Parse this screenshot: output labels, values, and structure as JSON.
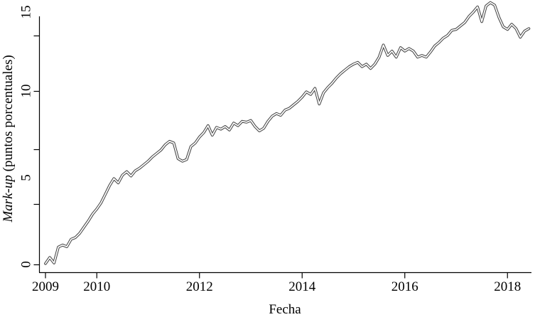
{
  "figure": {
    "background": "#ffffff",
    "axis_color": "#000000",
    "text_color": "#000000"
  },
  "chart_data": {
    "type": "line",
    "title": "",
    "xlabel": "Fecha",
    "ylabel": {
      "italic": "Mark-up",
      "rest": " (puntos porcentuales)"
    },
    "x_tick_labels": [
      "2009",
      "2010",
      "2012",
      "2014",
      "2016",
      "2018"
    ],
    "x_tick_years": [
      2009,
      2010,
      2012,
      2014,
      2016,
      2018
    ],
    "y_tick_labels": [
      "0",
      "5",
      "10",
      "15"
    ],
    "y_tick_values": [
      0,
      5,
      10,
      15
    ],
    "xlim": [
      2008.88,
      2018.47
    ],
    "ylim": [
      0,
      15.4
    ],
    "grid": false,
    "legend": false,
    "line_style": {
      "outline_color": "#474747",
      "core_color": "#ffffff"
    },
    "series": [
      {
        "name": "mark-up",
        "points": [
          [
            2009.0,
            0.05
          ],
          [
            2009.083,
            0.4
          ],
          [
            2009.167,
            0.08
          ],
          [
            2009.25,
            1.0
          ],
          [
            2009.333,
            1.12
          ],
          [
            2009.417,
            1.02
          ],
          [
            2009.5,
            1.45
          ],
          [
            2009.583,
            1.55
          ],
          [
            2009.667,
            1.8
          ],
          [
            2009.75,
            2.15
          ],
          [
            2009.833,
            2.5
          ],
          [
            2009.917,
            2.9
          ],
          [
            2010.0,
            3.2
          ],
          [
            2010.083,
            3.55
          ],
          [
            2010.167,
            4.05
          ],
          [
            2010.25,
            4.55
          ],
          [
            2010.333,
            4.95
          ],
          [
            2010.417,
            4.7
          ],
          [
            2010.5,
            5.15
          ],
          [
            2010.583,
            5.35
          ],
          [
            2010.667,
            5.1
          ],
          [
            2010.75,
            5.4
          ],
          [
            2010.833,
            5.55
          ],
          [
            2010.917,
            5.75
          ],
          [
            2011.0,
            5.95
          ],
          [
            2011.083,
            6.2
          ],
          [
            2011.167,
            6.4
          ],
          [
            2011.25,
            6.6
          ],
          [
            2011.333,
            6.9
          ],
          [
            2011.417,
            7.1
          ],
          [
            2011.5,
            7.0
          ],
          [
            2011.583,
            6.1
          ],
          [
            2011.667,
            5.95
          ],
          [
            2011.75,
            6.05
          ],
          [
            2011.833,
            6.8
          ],
          [
            2011.917,
            7.0
          ],
          [
            2012.0,
            7.35
          ],
          [
            2012.083,
            7.6
          ],
          [
            2012.167,
            8.0
          ],
          [
            2012.25,
            7.45
          ],
          [
            2012.333,
            7.9
          ],
          [
            2012.417,
            7.8
          ],
          [
            2012.5,
            7.95
          ],
          [
            2012.583,
            7.75
          ],
          [
            2012.667,
            8.15
          ],
          [
            2012.75,
            8.0
          ],
          [
            2012.833,
            8.25
          ],
          [
            2012.917,
            8.2
          ],
          [
            2013.0,
            8.3
          ],
          [
            2013.083,
            7.95
          ],
          [
            2013.167,
            7.7
          ],
          [
            2013.25,
            7.85
          ],
          [
            2013.333,
            8.25
          ],
          [
            2013.417,
            8.55
          ],
          [
            2013.5,
            8.7
          ],
          [
            2013.583,
            8.6
          ],
          [
            2013.667,
            8.9
          ],
          [
            2013.75,
            9.0
          ],
          [
            2013.833,
            9.2
          ],
          [
            2013.917,
            9.4
          ],
          [
            2014.0,
            9.65
          ],
          [
            2014.083,
            9.95
          ],
          [
            2014.167,
            9.8
          ],
          [
            2014.25,
            10.15
          ],
          [
            2014.333,
            9.25
          ],
          [
            2014.417,
            9.9
          ],
          [
            2014.5,
            10.2
          ],
          [
            2014.583,
            10.45
          ],
          [
            2014.667,
            10.75
          ],
          [
            2014.75,
            11.0
          ],
          [
            2014.833,
            11.2
          ],
          [
            2014.917,
            11.4
          ],
          [
            2015.0,
            11.55
          ],
          [
            2015.083,
            11.65
          ],
          [
            2015.167,
            11.4
          ],
          [
            2015.25,
            11.55
          ],
          [
            2015.333,
            11.3
          ],
          [
            2015.417,
            11.55
          ],
          [
            2015.5,
            11.95
          ],
          [
            2015.583,
            12.65
          ],
          [
            2015.667,
            12.05
          ],
          [
            2015.75,
            12.3
          ],
          [
            2015.833,
            11.95
          ],
          [
            2015.917,
            12.5
          ],
          [
            2016.0,
            12.3
          ],
          [
            2016.083,
            12.45
          ],
          [
            2016.167,
            12.3
          ],
          [
            2016.25,
            11.95
          ],
          [
            2016.333,
            12.05
          ],
          [
            2016.417,
            11.95
          ],
          [
            2016.5,
            12.25
          ],
          [
            2016.583,
            12.6
          ],
          [
            2016.667,
            12.8
          ],
          [
            2016.75,
            13.05
          ],
          [
            2016.833,
            13.2
          ],
          [
            2016.917,
            13.5
          ],
          [
            2017.0,
            13.55
          ],
          [
            2017.083,
            13.75
          ],
          [
            2017.167,
            13.95
          ],
          [
            2017.25,
            14.3
          ],
          [
            2017.333,
            14.55
          ],
          [
            2017.417,
            14.85
          ],
          [
            2017.5,
            14.0
          ],
          [
            2017.583,
            14.9
          ],
          [
            2017.667,
            15.1
          ],
          [
            2017.75,
            14.95
          ],
          [
            2017.833,
            14.25
          ],
          [
            2017.917,
            13.7
          ],
          [
            2018.0,
            13.55
          ],
          [
            2018.083,
            13.85
          ],
          [
            2018.167,
            13.6
          ],
          [
            2018.25,
            13.1
          ],
          [
            2018.333,
            13.45
          ],
          [
            2018.417,
            13.6
          ]
        ]
      }
    ]
  }
}
